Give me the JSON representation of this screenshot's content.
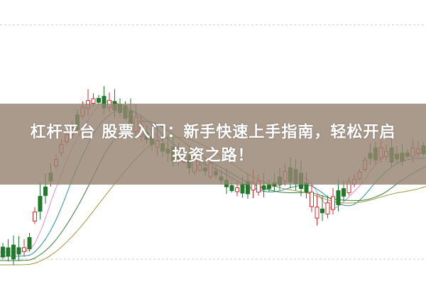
{
  "title": {
    "line1": "杠杆平台 股票入门：新手快速上手指南，轻松开启",
    "line2": "投资之路！"
  },
  "colors": {
    "up": "#d42a2a",
    "down": "#1f7a2a",
    "banner": "#968472",
    "ma_lines": [
      "#e88ad0",
      "#2a8fa0",
      "#3e7a3a",
      "#9a9a40"
    ]
  },
  "icons": [
    "candlestick-chart-illustration"
  ]
}
